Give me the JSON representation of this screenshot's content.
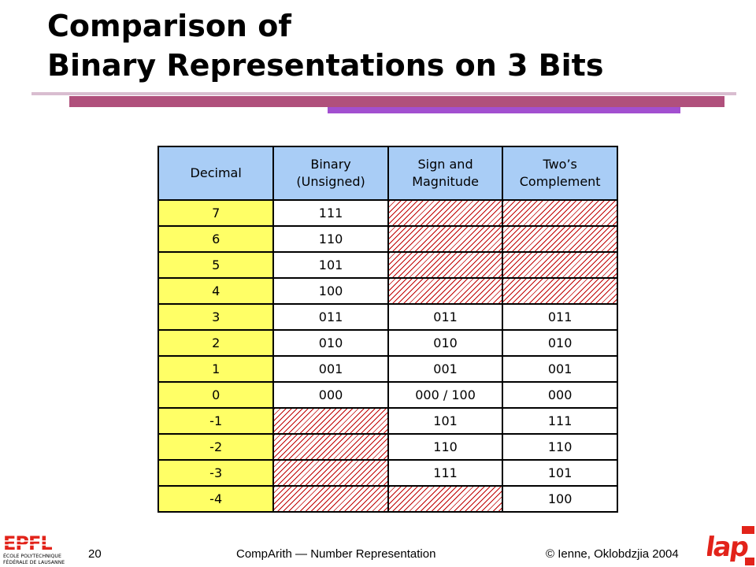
{
  "title": {
    "line1": "Comparison of",
    "line2": "Binary Representations on 3 Bits"
  },
  "table": {
    "headers": {
      "decimal": "Decimal",
      "binary_line1": "Binary",
      "binary_line2": "(Unsigned)",
      "sign_line1": "Sign and",
      "sign_line2": "Magnitude",
      "twos_line1": "Two’s",
      "twos_line2": "Complement"
    },
    "rows": [
      {
        "decimal": "7",
        "unsigned": "111",
        "sign_magnitude": null,
        "twos_complement": null
      },
      {
        "decimal": "6",
        "unsigned": "110",
        "sign_magnitude": null,
        "twos_complement": null
      },
      {
        "decimal": "5",
        "unsigned": "101",
        "sign_magnitude": null,
        "twos_complement": null
      },
      {
        "decimal": "4",
        "unsigned": "100",
        "sign_magnitude": null,
        "twos_complement": null
      },
      {
        "decimal": "3",
        "unsigned": "011",
        "sign_magnitude": "011",
        "twos_complement": "011"
      },
      {
        "decimal": "2",
        "unsigned": "010",
        "sign_magnitude": "010",
        "twos_complement": "010"
      },
      {
        "decimal": "1",
        "unsigned": "001",
        "sign_magnitude": "001",
        "twos_complement": "001"
      },
      {
        "decimal": "0",
        "unsigned": "000",
        "sign_magnitude": "000 / 100",
        "twos_complement": "000"
      },
      {
        "decimal": "-1",
        "unsigned": null,
        "sign_magnitude": "101",
        "twos_complement": "111"
      },
      {
        "decimal": "-2",
        "unsigned": null,
        "sign_magnitude": "110",
        "twos_complement": "110"
      },
      {
        "decimal": "-3",
        "unsigned": null,
        "sign_magnitude": "111",
        "twos_complement": "101"
      },
      {
        "decimal": "-4",
        "unsigned": null,
        "sign_magnitude": null,
        "twos_complement": "100"
      }
    ]
  },
  "footer": {
    "page_number": "20",
    "course": "CompArith — Number Representation",
    "copyright": "© Ienne, Oklobdzjia 2004"
  },
  "logos": {
    "left": {
      "name": "epfl-logo",
      "text_main": "EPFL",
      "text_line1": "ÉCOLE POLYTECHNIQUE",
      "text_line2": "FÉDÉRALE DE LAUSANNE"
    },
    "right": {
      "name": "lap-logo",
      "text": "lap"
    }
  },
  "colors": {
    "title_rule_thin": "#d9bdd0",
    "title_rule_thick": "#b0507c",
    "title_rule_accent": "#a24fd0",
    "header_background": "#a9cdf6",
    "decimal_column_background": "#ffff66",
    "hatch_color": "#c00000",
    "logo_red": "#e2231a"
  }
}
